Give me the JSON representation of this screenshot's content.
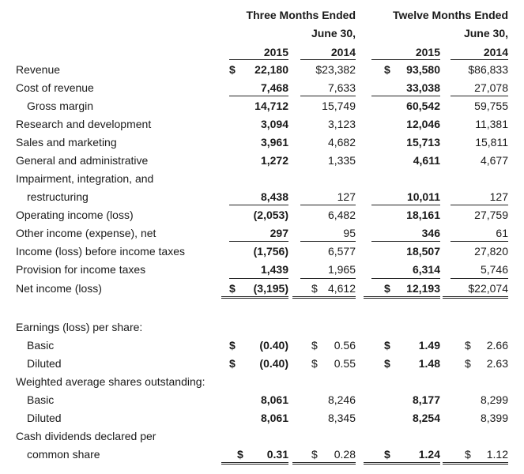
{
  "header": {
    "three_months_line1": "Three Months Ended",
    "three_months_line2": "June 30,",
    "twelve_months_line1": "Twelve Months Ended",
    "twelve_months_line2": "June 30,",
    "years": [
      "2015",
      "2014",
      "2015",
      "2014"
    ]
  },
  "currency_symbol": "$",
  "rows": [
    {
      "label": "Revenue",
      "values": [
        "22,180",
        "$23,382",
        "93,580",
        "$86,833"
      ]
    },
    {
      "label": "Cost of revenue",
      "values": [
        "7,468",
        "7,633",
        "33,038",
        "27,078"
      ]
    },
    {
      "label": "Gross margin",
      "values": [
        "14,712",
        "15,749",
        "60,542",
        "59,755"
      ]
    },
    {
      "label": "Research and development",
      "values": [
        "3,094",
        "3,123",
        "12,046",
        "11,381"
      ]
    },
    {
      "label": "Sales and marketing",
      "values": [
        "3,961",
        "4,682",
        "15,713",
        "15,811"
      ]
    },
    {
      "label": "General and administrative",
      "values": [
        "1,272",
        "1,335",
        "4,611",
        "4,677"
      ]
    },
    {
      "label": "Impairment, integration, and",
      "label2": "restructuring",
      "values": [
        "8,438",
        "127",
        "10,011",
        "127"
      ]
    },
    {
      "label": "Operating income (loss)",
      "values": [
        "(2,053)",
        "6,482",
        "18,161",
        "27,759"
      ]
    },
    {
      "label": "Other income (expense), net",
      "values": [
        "297",
        "95",
        "346",
        "61"
      ]
    },
    {
      "label": "Income (loss) before income taxes",
      "values": [
        "(1,756)",
        "6,577",
        "18,507",
        "27,820"
      ]
    },
    {
      "label": "Provision for income taxes",
      "values": [
        "1,439",
        "1,965",
        "6,314",
        "5,746"
      ]
    },
    {
      "label": "Net income (loss)",
      "values": [
        "(3,195)",
        "4,612",
        "12,193",
        "$22,074"
      ]
    }
  ],
  "eps": {
    "title": "Earnings (loss) per share:",
    "basic": {
      "label": "Basic",
      "values": [
        "(0.40)",
        "0.56",
        "1.49",
        "2.66"
      ]
    },
    "diluted": {
      "label": "Diluted",
      "values": [
        "(0.40)",
        "0.55",
        "1.48",
        "2.63"
      ]
    }
  },
  "shares": {
    "title": "Weighted average shares outstanding:",
    "basic": {
      "label": "Basic",
      "values": [
        "8,061",
        "8,246",
        "8,177",
        "8,299"
      ]
    },
    "diluted": {
      "label": "Diluted",
      "values": [
        "8,061",
        "8,345",
        "8,254",
        "8,399"
      ]
    }
  },
  "dividends": {
    "label1": "Cash dividends declared per",
    "label2": "common share",
    "values": [
      "0.31",
      "0.28",
      "1.24",
      "1.12"
    ]
  }
}
